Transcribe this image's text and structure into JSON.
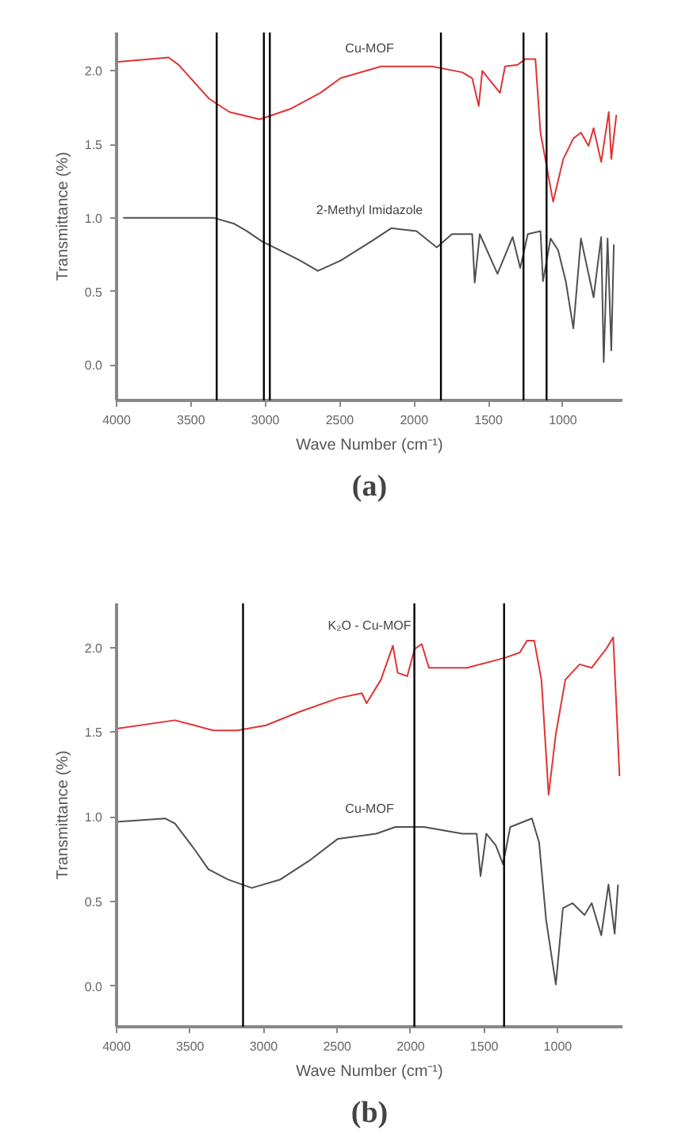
{
  "chart_data": [
    {
      "type": "line",
      "title": "(a)",
      "xlabel": "Wave Number (cm⁻¹)",
      "ylabel": "Transmittance (%)",
      "xlim": [
        4000,
        600
      ],
      "ylim": [
        -0.24,
        2.26
      ],
      "xticks": [
        4000,
        3500,
        3000,
        2500,
        2000,
        1500,
        1000
      ],
      "yticks": [
        {
          "value": 0,
          "label": "0.0"
        },
        {
          "value": 0.5,
          "label": "0.5"
        },
        {
          "value": 1,
          "label": "1.0"
        },
        {
          "value": 1.5,
          "label": "1.5"
        },
        {
          "value": 2,
          "label": "2.0"
        }
      ],
      "series": [
        {
          "name": "Cu-MOF",
          "color": "#e03434",
          "x": [
            3990,
            3650,
            3582,
            3378,
            3242,
            3038,
            2834,
            2630,
            2494,
            2222,
            1882,
            1678,
            1610,
            1566,
            1542,
            1423,
            1389,
            1304,
            1253,
            1185,
            1151,
            1066,
            998,
            930,
            879,
            828,
            794,
            743,
            692,
            675,
            641
          ],
          "values": [
            2.06,
            2.09,
            2.04,
            1.81,
            1.72,
            1.67,
            1.74,
            1.85,
            1.95,
            2.03,
            2.03,
            1.99,
            1.95,
            1.76,
            2.0,
            1.85,
            2.03,
            2.04,
            2.08,
            2.08,
            1.58,
            1.11,
            1.4,
            1.54,
            1.58,
            1.49,
            1.61,
            1.38,
            1.72,
            1.4,
            1.7
          ]
        },
        {
          "name": "2-Methyl Imidazole",
          "color": "#505050",
          "x": [
            3956,
            3344,
            3208,
            3123,
            3021,
            2902,
            2766,
            2647,
            2494,
            2290,
            2154,
            1984,
            1848,
            1746,
            1610,
            1593,
            1559,
            1440,
            1338,
            1287,
            1236,
            1151,
            1134,
            1083,
            1032,
            981,
            930,
            879,
            794,
            743,
            726,
            700,
            675,
            658
          ],
          "values": [
            1.0,
            1.0,
            0.96,
            0.91,
            0.84,
            0.78,
            0.71,
            0.64,
            0.71,
            0.84,
            0.93,
            0.91,
            0.8,
            0.89,
            0.89,
            0.56,
            0.89,
            0.62,
            0.87,
            0.66,
            0.89,
            0.91,
            0.57,
            0.86,
            0.78,
            0.57,
            0.25,
            0.86,
            0.46,
            0.87,
            0.02,
            0.86,
            0.1,
            0.82
          ]
        }
      ],
      "ref_lines": [
        {
          "axis": "x",
          "value": 3327,
          "color": "#000000"
        },
        {
          "axis": "x",
          "value": 3010,
          "color": "#000000"
        },
        {
          "axis": "x",
          "value": 2970,
          "color": "#000000"
        },
        {
          "axis": "x",
          "value": 1820,
          "color": "#000000"
        },
        {
          "axis": "x",
          "value": 1265,
          "color": "#000000"
        },
        {
          "axis": "x",
          "value": 1110,
          "color": "#000000"
        }
      ]
    },
    {
      "type": "line",
      "title": "(b)",
      "xlabel": "Wave Number (cm⁻¹)",
      "ylabel": "Transmittance (%)",
      "xlim": [
        4000,
        560
      ],
      "ylim": [
        -0.24,
        2.26
      ],
      "xticks": [
        4000,
        3500,
        3000,
        2500,
        2000,
        1500,
        1000
      ],
      "yticks": [
        {
          "value": 0,
          "label": "0.0"
        },
        {
          "value": 0.5,
          "label": "0.5"
        },
        {
          "value": 1,
          "label": "1.0"
        },
        {
          "value": 1.5,
          "label": "1.5"
        },
        {
          "value": 2,
          "label": "2.0"
        }
      ],
      "series": [
        {
          "name": "K₂O - Cu-MOF",
          "color": "#e03434",
          "x": [
            4000,
            3603,
            3472,
            3342,
            3179,
            2984,
            2756,
            2495,
            2332,
            2300,
            2202,
            2121,
            2088,
            2023,
            1974,
            1925,
            1876,
            1616,
            1355,
            1258,
            1209,
            1160,
            1111,
            1062,
            1013,
            948,
            851,
            769,
            672,
            623,
            600,
            580
          ],
          "values": [
            1.52,
            1.57,
            1.54,
            1.51,
            1.51,
            1.54,
            1.62,
            1.7,
            1.73,
            1.67,
            1.81,
            2.01,
            1.85,
            1.83,
            1.99,
            2.02,
            1.88,
            1.88,
            1.94,
            1.97,
            2.04,
            2.04,
            1.81,
            1.13,
            1.49,
            1.81,
            1.9,
            1.88,
            1.99,
            2.06,
            1.63,
            1.24
          ]
        },
        {
          "name": "Cu-MOF",
          "color": "#505050",
          "x": [
            4000,
            3668,
            3603,
            3472,
            3375,
            3244,
            3081,
            2886,
            2691,
            2495,
            2235,
            2104,
            1909,
            1648,
            1551,
            1525,
            1486,
            1421,
            1372,
            1323,
            1176,
            1127,
            1079,
            1013,
            965,
            900,
            818,
            769,
            704,
            655,
            613,
            590
          ],
          "values": [
            0.97,
            0.99,
            0.96,
            0.81,
            0.69,
            0.63,
            0.58,
            0.63,
            0.74,
            0.87,
            0.9,
            0.94,
            0.94,
            0.9,
            0.9,
            0.65,
            0.9,
            0.83,
            0.72,
            0.94,
            0.99,
            0.85,
            0.39,
            0.01,
            0.46,
            0.49,
            0.42,
            0.49,
            0.3,
            0.6,
            0.31,
            0.6
          ]
        }
      ],
      "ref_lines": [
        {
          "axis": "x",
          "value": 3140,
          "color": "#000000"
        },
        {
          "axis": "x",
          "value": 1975,
          "color": "#000000"
        },
        {
          "axis": "x",
          "value": 1365,
          "color": "#000000"
        }
      ]
    }
  ]
}
